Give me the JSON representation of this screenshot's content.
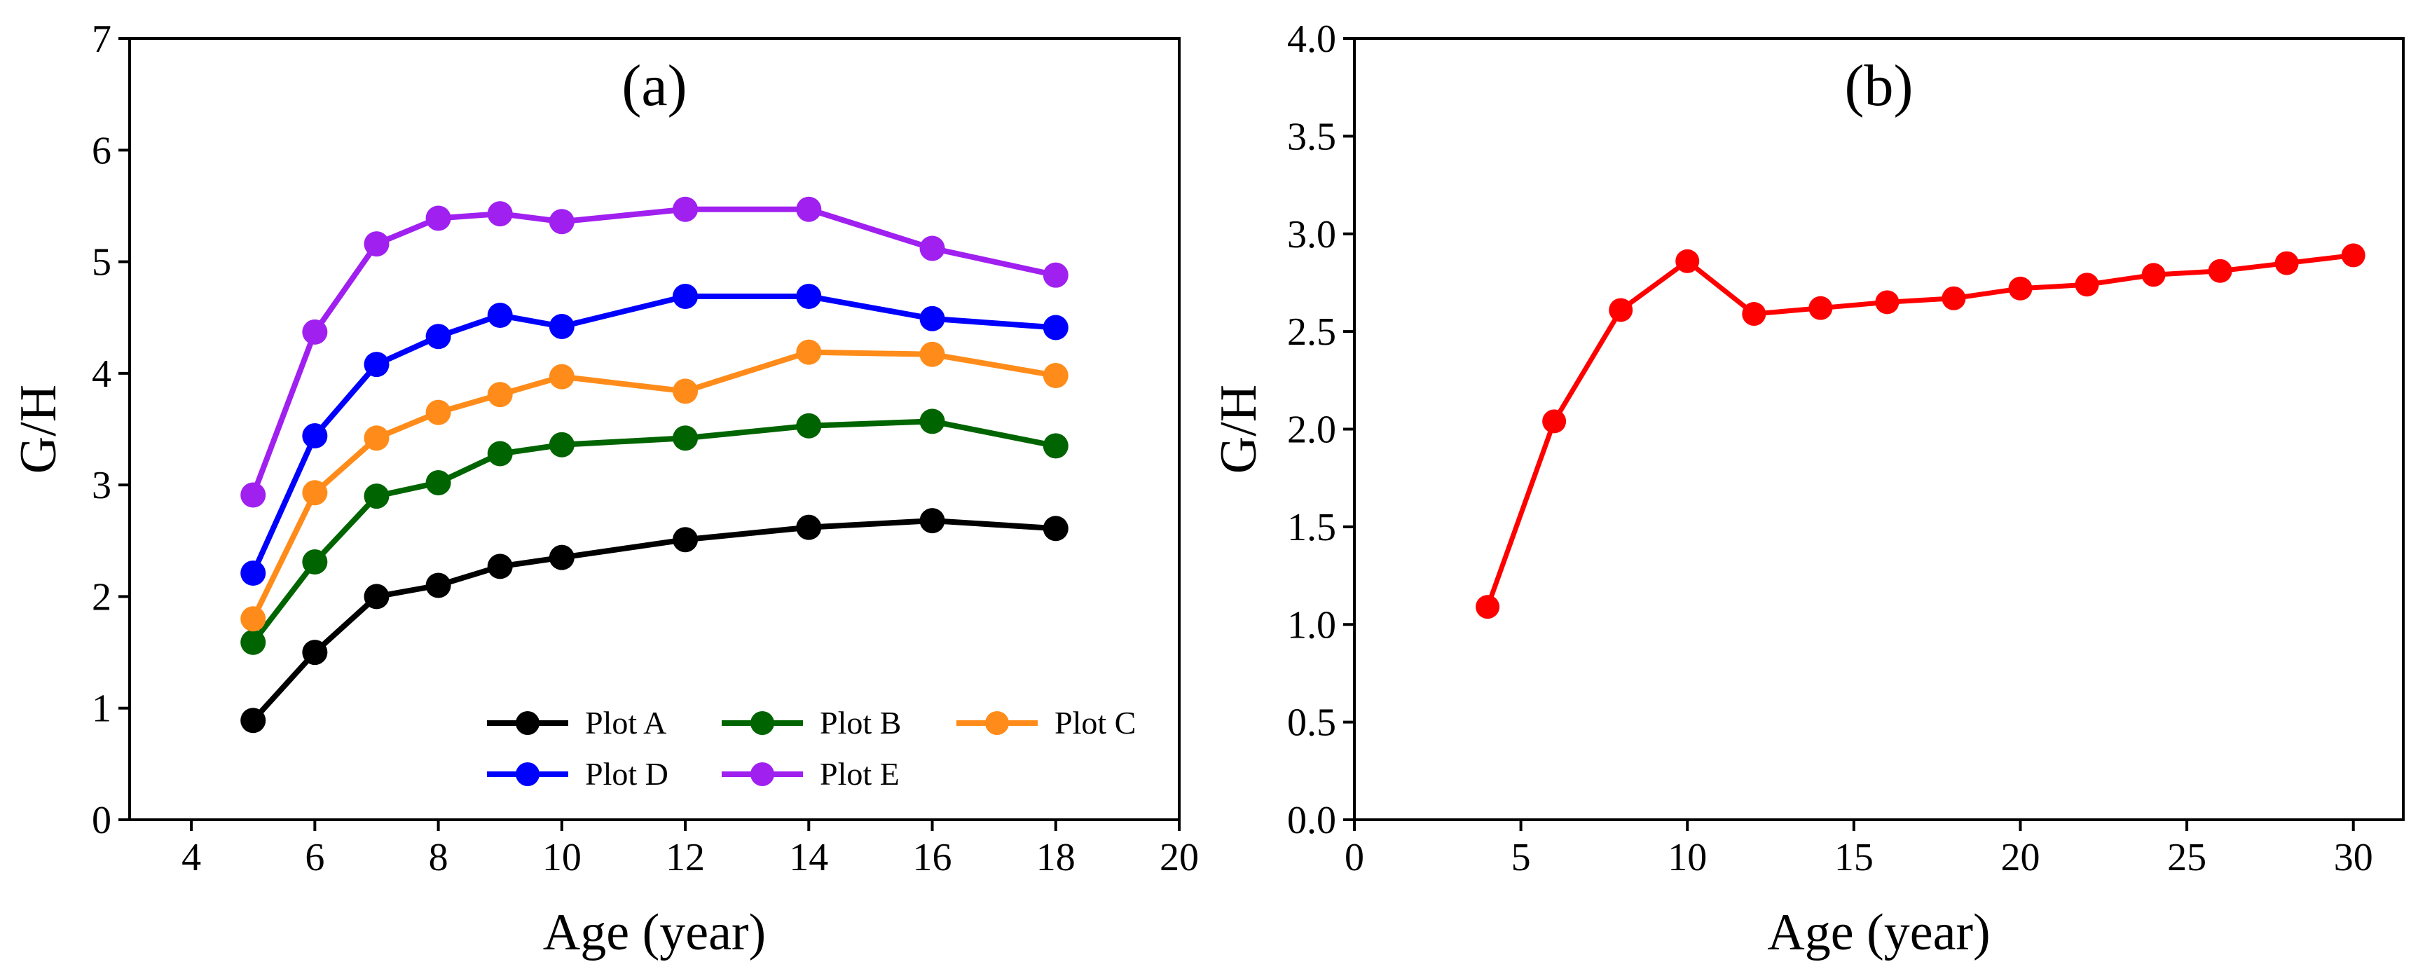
{
  "chart_data": [
    {
      "type": "line",
      "panel_label": "(a)",
      "xlabel": "Age (year)",
      "ylabel": "G/H",
      "xlim": [
        3,
        20
      ],
      "ylim": [
        0,
        7
      ],
      "x_ticks": [
        4,
        6,
        8,
        10,
        12,
        14,
        16,
        18,
        20
      ],
      "y_ticks": [
        0,
        1,
        2,
        3,
        4,
        5,
        6,
        7
      ],
      "legend_position": "bottom-right",
      "x": [
        5,
        6,
        7,
        8,
        9,
        10,
        12,
        14,
        16,
        18
      ],
      "series": [
        {
          "name": "Plot A",
          "color": "#000000",
          "values": [
            0.89,
            1.5,
            2.0,
            2.1,
            2.27,
            2.35,
            2.51,
            2.62,
            2.68,
            2.61
          ]
        },
        {
          "name": "Plot B",
          "color": "#006400",
          "values": [
            1.59,
            2.31,
            2.9,
            3.02,
            3.28,
            3.36,
            3.42,
            3.53,
            3.57,
            3.35
          ]
        },
        {
          "name": "Plot C",
          "color": "#ff8c1a",
          "values": [
            1.8,
            2.93,
            3.42,
            3.65,
            3.81,
            3.97,
            3.84,
            4.19,
            4.17,
            3.98
          ]
        },
        {
          "name": "Plot D",
          "color": "#0000ff",
          "values": [
            2.21,
            3.44,
            4.08,
            4.33,
            4.52,
            4.42,
            4.69,
            4.69,
            4.49,
            4.41
          ]
        },
        {
          "name": "Plot E",
          "color": "#a020f0",
          "values": [
            2.91,
            4.37,
            5.16,
            5.39,
            5.43,
            5.36,
            5.47,
            5.47,
            5.12,
            4.88
          ]
        }
      ]
    },
    {
      "type": "line",
      "panel_label": "(b)",
      "xlabel": "Age (year)",
      "ylabel": "G/H",
      "xlim": [
        0,
        31.5
      ],
      "ylim": [
        0,
        4.0
      ],
      "x_ticks": [
        0,
        5,
        10,
        15,
        20,
        25,
        30
      ],
      "y_ticks": [
        "0.0",
        "0.5",
        "1.0",
        "1.5",
        "2.0",
        "2.5",
        "3.0",
        "3.5",
        "4.0"
      ],
      "x": [
        4,
        6,
        8,
        10,
        12,
        14,
        16,
        18,
        20,
        22,
        24,
        26,
        28,
        30
      ],
      "series": [
        {
          "name": "",
          "color": "#ff0000",
          "values": [
            1.09,
            2.04,
            2.61,
            2.86,
            2.59,
            2.62,
            2.65,
            2.67,
            2.72,
            2.74,
            2.79,
            2.81,
            2.85,
            2.89
          ]
        }
      ]
    }
  ]
}
